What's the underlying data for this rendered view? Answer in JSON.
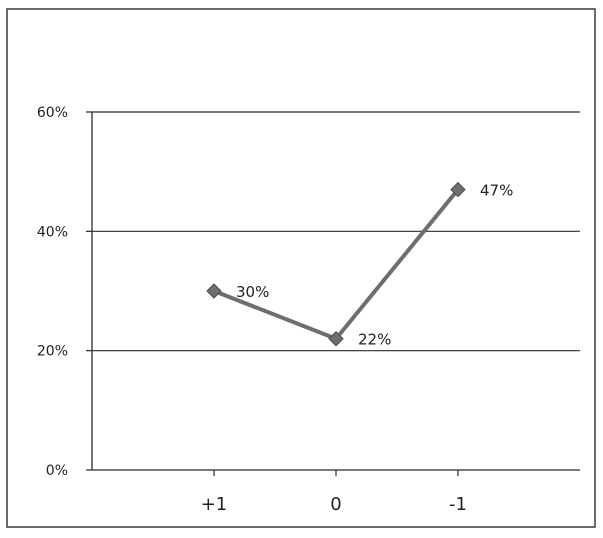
{
  "chart_data": {
    "type": "line",
    "title": "",
    "xlabel": "",
    "ylabel": "",
    "categories": [
      "+1",
      "0",
      "-1"
    ],
    "series": [
      {
        "values": [
          0.3,
          0.22,
          0.47
        ],
        "data_labels": [
          "30%",
          "22%",
          "47%"
        ],
        "marker": "diamond",
        "color": "#6e6e6e"
      }
    ],
    "ylim": [
      0,
      0.6
    ],
    "yticks": [
      0,
      0.2,
      0.4,
      0.6
    ],
    "ytick_labels": [
      "0%",
      "20%",
      "40%",
      "60%"
    ],
    "grid": true,
    "legend": "none"
  }
}
